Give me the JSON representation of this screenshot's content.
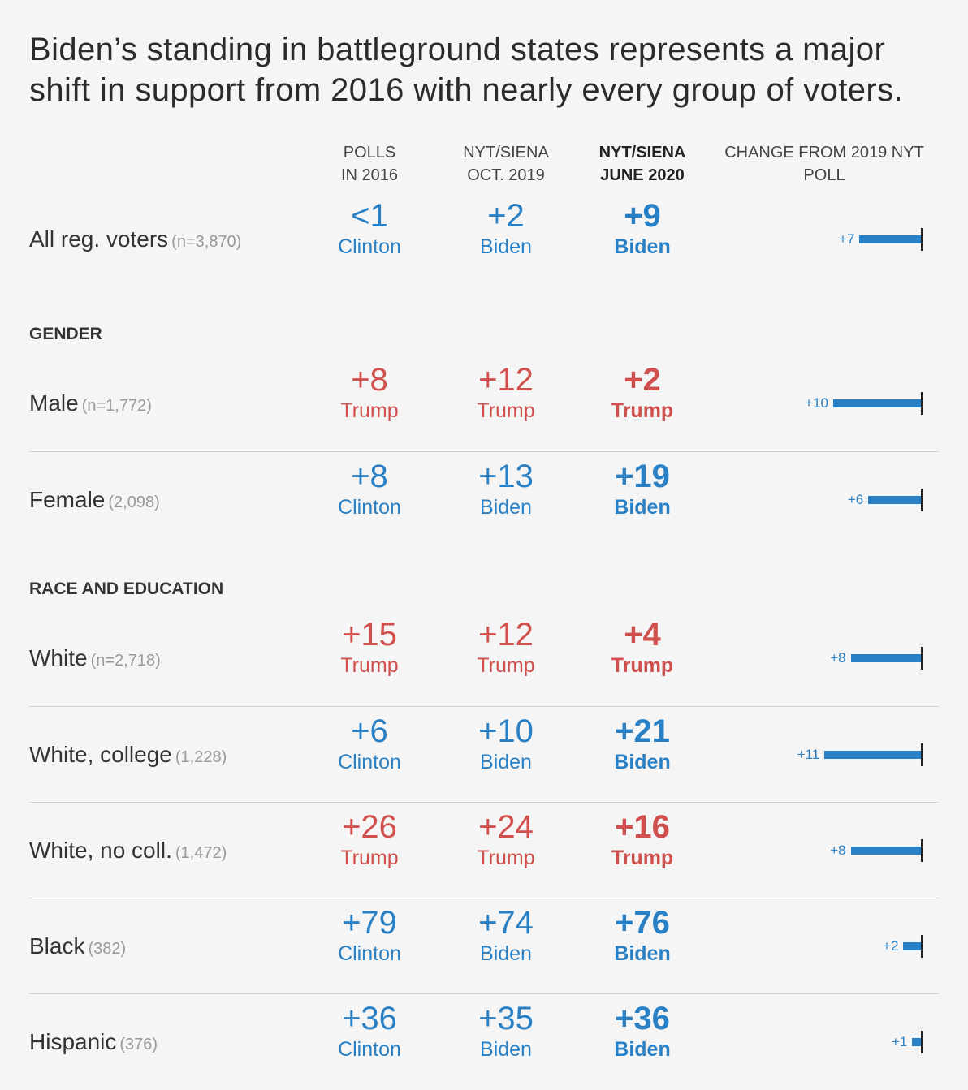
{
  "title": "Biden’s standing in battleground states represents a major shift in support from 2016 with nearly every group of voters.",
  "columns": [
    {
      "line1": "POLLS",
      "line2": "IN 2016",
      "bold": false
    },
    {
      "line1": "NYT/SIENA",
      "line2": "OCT. 2019",
      "bold": false
    },
    {
      "line1": "NYT/SIENA",
      "line2": "JUNE 2020",
      "bold": true
    },
    {
      "line1": "CHANGE FROM 2019 NYT",
      "line2": "POLL",
      "bold": false
    }
  ],
  "colors": {
    "biden": "#2a80c4",
    "trump": "#d0504e"
  },
  "chart_data": {
    "type": "table",
    "sections": [
      {
        "name": "",
        "rows": [
          {
            "label": "All reg. voters",
            "n": "(n=3,870)",
            "p2016": {
              "value": "<1",
              "winner": "Clinton"
            },
            "oct2019": {
              "value": "+2",
              "winner": "Biden"
            },
            "jun2020": {
              "value": "+9",
              "winner": "Biden"
            },
            "change": 7,
            "change_label": "+7"
          }
        ]
      },
      {
        "name": "GENDER",
        "rows": [
          {
            "label": "Male",
            "n": "(n=1,772)",
            "p2016": {
              "value": "+8",
              "winner": "Trump"
            },
            "oct2019": {
              "value": "+12",
              "winner": "Trump"
            },
            "jun2020": {
              "value": "+2",
              "winner": "Trump"
            },
            "change": 10,
            "change_label": "+10"
          },
          {
            "label": "Female",
            "n": "(2,098)",
            "p2016": {
              "value": "+8",
              "winner": "Clinton"
            },
            "oct2019": {
              "value": "+13",
              "winner": "Biden"
            },
            "jun2020": {
              "value": "+19",
              "winner": "Biden"
            },
            "change": 6,
            "change_label": "+6"
          }
        ]
      },
      {
        "name": "RACE AND EDUCATION",
        "rows": [
          {
            "label": "White",
            "n": "(n=2,718)",
            "p2016": {
              "value": "+15",
              "winner": "Trump"
            },
            "oct2019": {
              "value": "+12",
              "winner": "Trump"
            },
            "jun2020": {
              "value": "+4",
              "winner": "Trump"
            },
            "change": 8,
            "change_label": "+8"
          },
          {
            "label": "White, college",
            "n": "(1,228)",
            "p2016": {
              "value": "+6",
              "winner": "Clinton"
            },
            "oct2019": {
              "value": "+10",
              "winner": "Biden"
            },
            "jun2020": {
              "value": "+21",
              "winner": "Biden"
            },
            "change": 11,
            "change_label": "+11"
          },
          {
            "label": "White, no coll.",
            "n": "(1,472)",
            "p2016": {
              "value": "+26",
              "winner": "Trump"
            },
            "oct2019": {
              "value": "+24",
              "winner": "Trump"
            },
            "jun2020": {
              "value": "+16",
              "winner": "Trump"
            },
            "change": 8,
            "change_label": "+8"
          },
          {
            "label": "Black",
            "n": "(382)",
            "p2016": {
              "value": "+79",
              "winner": "Clinton"
            },
            "oct2019": {
              "value": "+74",
              "winner": "Biden"
            },
            "jun2020": {
              "value": "+76",
              "winner": "Biden"
            },
            "change": 2,
            "change_label": "+2"
          },
          {
            "label": "Hispanic",
            "n": "(376)",
            "p2016": {
              "value": "+36",
              "winner": "Clinton"
            },
            "oct2019": {
              "value": "+35",
              "winner": "Biden"
            },
            "jun2020": {
              "value": "+36",
              "winner": "Biden"
            },
            "change": 1,
            "change_label": "+1"
          }
        ]
      }
    ]
  }
}
